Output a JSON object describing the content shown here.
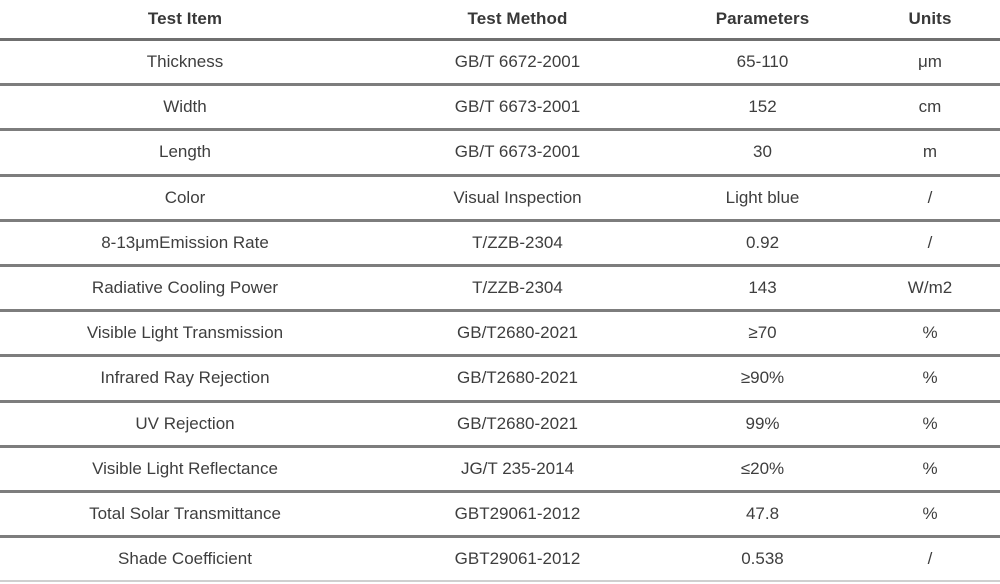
{
  "table": {
    "columns": [
      {
        "label": "Test Item"
      },
      {
        "label": "Test Method"
      },
      {
        "label": "Parameters"
      },
      {
        "label": "Units"
      }
    ],
    "rows": [
      {
        "item": "Thickness",
        "method": "GB/T 6672-2001",
        "parameter": "65-110",
        "unit": "μm"
      },
      {
        "item": "Width",
        "method": "GB/T 6673-2001",
        "parameter": "152",
        "unit": "cm"
      },
      {
        "item": "Length",
        "method": "GB/T 6673-2001",
        "parameter": "30",
        "unit": "m"
      },
      {
        "item": "Color",
        "method": "Visual Inspection",
        "parameter": "Light blue",
        "unit": "/"
      },
      {
        "item": "8-13μmEmission Rate",
        "method": "T/ZZB-2304",
        "parameter": "0.92",
        "unit": "/"
      },
      {
        "item": "Radiative Cooling Power",
        "method": "T/ZZB-2304",
        "parameter": "143",
        "unit": "W/m2"
      },
      {
        "item": "Visible Light Transmission",
        "method": "GB/T2680-2021",
        "parameter": "≥70",
        "unit": "%"
      },
      {
        "item": "Infrared Ray Rejection",
        "method": "GB/T2680-2021",
        "parameter": "≥90%",
        "unit": "%"
      },
      {
        "item": "UV Rejection",
        "method": "GB/T2680-2021",
        "parameter": "99%",
        "unit": "%"
      },
      {
        "item": "Visible Light Reflectance",
        "method": "JG/T 235-2014",
        "parameter": "≤20%",
        "unit": "%"
      },
      {
        "item": "Total Solar Transmittance",
        "method": "GBT29061-2012",
        "parameter": "47.8",
        "unit": "%"
      },
      {
        "item": "Shade Coefficient",
        "method": "GBT29061-2012",
        "parameter": "0.538",
        "unit": "/"
      }
    ],
    "colors": {
      "header_rule": "#6f6f6f",
      "row_rule": "#7d7d7d",
      "header_text": "#383838",
      "body_text": "#3e3e3e",
      "background": "#ffffff"
    }
  }
}
